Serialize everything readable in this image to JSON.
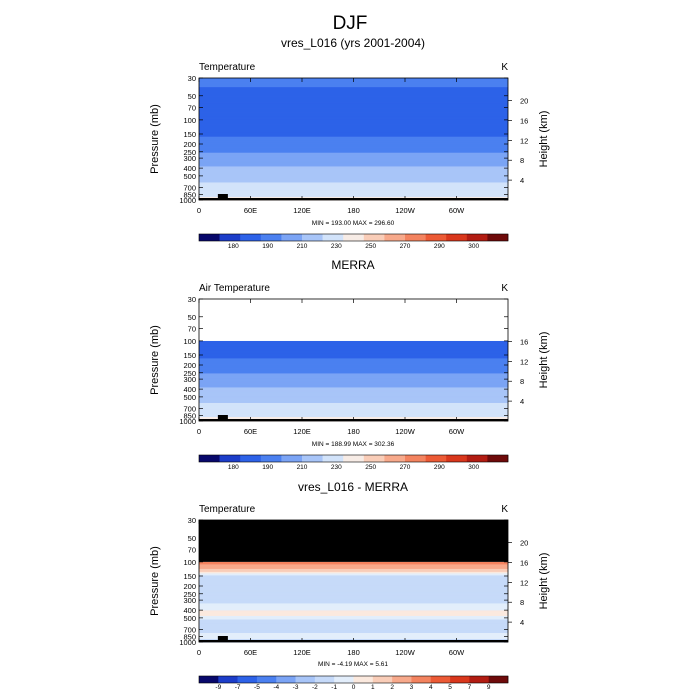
{
  "page_title": "DJF",
  "chart_data": [
    {
      "type": "heatmap",
      "title": "vres_L016 (yrs 2001-2004)",
      "variable_label": "Temperature",
      "units": "K",
      "xlabel": "",
      "ylabel": "Pressure (mb)",
      "y2label": "Height (km)",
      "x_ticks": [
        "0",
        "60E",
        "120E",
        "180",
        "120W",
        "60W"
      ],
      "x_tick_values": [
        0,
        60,
        120,
        180,
        240,
        300
      ],
      "xlim": [
        0,
        360
      ],
      "y_ticks": [
        "30",
        "50",
        "70",
        "100",
        "150",
        "200",
        "250",
        "300",
        "400",
        "500",
        "700",
        "850",
        "1000"
      ],
      "y_tick_values": [
        30,
        50,
        70,
        100,
        150,
        200,
        250,
        300,
        400,
        500,
        700,
        850,
        1000
      ],
      "ylim": [
        1000,
        30
      ],
      "y2_ticks": [
        "4",
        "8",
        "12",
        "16",
        "20"
      ],
      "y2_tick_values": [
        4,
        8,
        12,
        16,
        20
      ],
      "stats": "MIN = 193.00  MAX = 296.60",
      "colorbar_labels": [
        "180",
        "190",
        "210",
        "230",
        "250",
        "270",
        "290",
        "300"
      ],
      "colorbar_colors": [
        "#08086b",
        "#1c3dc9",
        "#2d62e8",
        "#4b80f0",
        "#7ba4f5",
        "#a8c5f8",
        "#d2e3fa",
        "#f7ece6",
        "#f9cdb8",
        "#f7a98b",
        "#f3835f",
        "#ec5a35",
        "#d9371c",
        "#b21c12",
        "#6e0a0a"
      ],
      "profile": [
        {
          "p": 30,
          "v": 213
        },
        {
          "p": 50,
          "v": 207
        },
        {
          "p": 70,
          "v": 202
        },
        {
          "p": 100,
          "v": 197
        },
        {
          "p": 150,
          "v": 206
        },
        {
          "p": 200,
          "v": 219
        },
        {
          "p": 250,
          "v": 229
        },
        {
          "p": 300,
          "v": 238
        },
        {
          "p": 400,
          "v": 252
        },
        {
          "p": 500,
          "v": 262
        },
        {
          "p": 700,
          "v": 277
        },
        {
          "p": 850,
          "v": 286
        },
        {
          "p": 1000,
          "v": 294
        }
      ],
      "profile_lower_cutoff": 0
    },
    {
      "type": "heatmap",
      "title": "MERRA",
      "variable_label": "Air Temperature",
      "units": "K",
      "xlabel": "",
      "ylabel": "Pressure (mb)",
      "y2label": "Height (km)",
      "x_ticks": [
        "0",
        "60E",
        "120E",
        "180",
        "120W",
        "60W"
      ],
      "x_tick_values": [
        0,
        60,
        120,
        180,
        240,
        300
      ],
      "xlim": [
        0,
        360
      ],
      "y_ticks": [
        "30",
        "50",
        "70",
        "100",
        "150",
        "200",
        "250",
        "300",
        "400",
        "500",
        "700",
        "850",
        "1000"
      ],
      "y_tick_values": [
        30,
        50,
        70,
        100,
        150,
        200,
        250,
        300,
        400,
        500,
        700,
        850,
        1000
      ],
      "ylim": [
        1000,
        30
      ],
      "y2_ticks": [
        "4",
        "8",
        "12",
        "16"
      ],
      "y2_tick_values": [
        4,
        8,
        12,
        16
      ],
      "stats": "MIN = 188.99  MAX = 302.36",
      "colorbar_labels": [
        "180",
        "190",
        "210",
        "230",
        "250",
        "270",
        "290",
        "300"
      ],
      "colorbar_colors": [
        "#08086b",
        "#1c3dc9",
        "#2d62e8",
        "#4b80f0",
        "#7ba4f5",
        "#a8c5f8",
        "#d2e3fa",
        "#f7ece6",
        "#f9cdb8",
        "#f7a98b",
        "#f3835f",
        "#ec5a35",
        "#d9371c",
        "#b21c12",
        "#6e0a0a"
      ],
      "profile": [
        {
          "p": 100,
          "v": 195
        },
        {
          "p": 150,
          "v": 205
        },
        {
          "p": 200,
          "v": 219
        },
        {
          "p": 250,
          "v": 229
        },
        {
          "p": 300,
          "v": 238
        },
        {
          "p": 400,
          "v": 252
        },
        {
          "p": 500,
          "v": 262
        },
        {
          "p": 700,
          "v": 277
        },
        {
          "p": 850,
          "v": 287
        },
        {
          "p": 1000,
          "v": 296
        }
      ],
      "no_data_above_p": 100
    },
    {
      "type": "heatmap",
      "title": "vres_L016 - MERRA",
      "variable_label": "Temperature",
      "units": "K",
      "xlabel": "",
      "ylabel": "Pressure (mb)",
      "y2label": "Height (km)",
      "x_ticks": [
        "0",
        "60E",
        "120E",
        "180",
        "120W",
        "60W"
      ],
      "x_tick_values": [
        0,
        60,
        120,
        180,
        240,
        300
      ],
      "xlim": [
        0,
        360
      ],
      "y_ticks": [
        "30",
        "50",
        "70",
        "100",
        "150",
        "200",
        "250",
        "300",
        "400",
        "500",
        "700",
        "850",
        "1000"
      ],
      "y_tick_values": [
        30,
        50,
        70,
        100,
        150,
        200,
        250,
        300,
        400,
        500,
        700,
        850,
        1000
      ],
      "ylim": [
        1000,
        30
      ],
      "y2_ticks": [
        "4",
        "8",
        "12",
        "16",
        "20"
      ],
      "y2_tick_values": [
        4,
        8,
        12,
        16,
        20
      ],
      "stats": "MIN =  -4.19  MAX =   5.61",
      "colorbar_labels": [
        "-9",
        "-7",
        "-5",
        "-4",
        "-3",
        "-2",
        "-1",
        "0",
        "1",
        "2",
        "3",
        "4",
        "5",
        "7",
        "9"
      ],
      "colorbar_colors": [
        "#08086b",
        "#1c3dc9",
        "#2d62e8",
        "#4b80f0",
        "#7ba4f5",
        "#a8c5f8",
        "#c6daf9",
        "#e3eefb",
        "#fbe9de",
        "#f9cdb8",
        "#f7a98b",
        "#f3835f",
        "#ec5a35",
        "#d9371c",
        "#b21c12",
        "#6e0a0a"
      ],
      "profile": [
        {
          "p": 100,
          "v": 3.5
        },
        {
          "p": 115,
          "v": 2.5
        },
        {
          "p": 130,
          "v": 1.5
        },
        {
          "p": 150,
          "v": -1.5
        },
        {
          "p": 300,
          "v": -1.5
        },
        {
          "p": 450,
          "v": 0.5
        },
        {
          "p": 550,
          "v": -1.5
        },
        {
          "p": 700,
          "v": -1.5
        },
        {
          "p": 850,
          "v": -0.5
        },
        {
          "p": 1000,
          "v": -1.5
        }
      ],
      "no_data_above_p": 100
    }
  ]
}
